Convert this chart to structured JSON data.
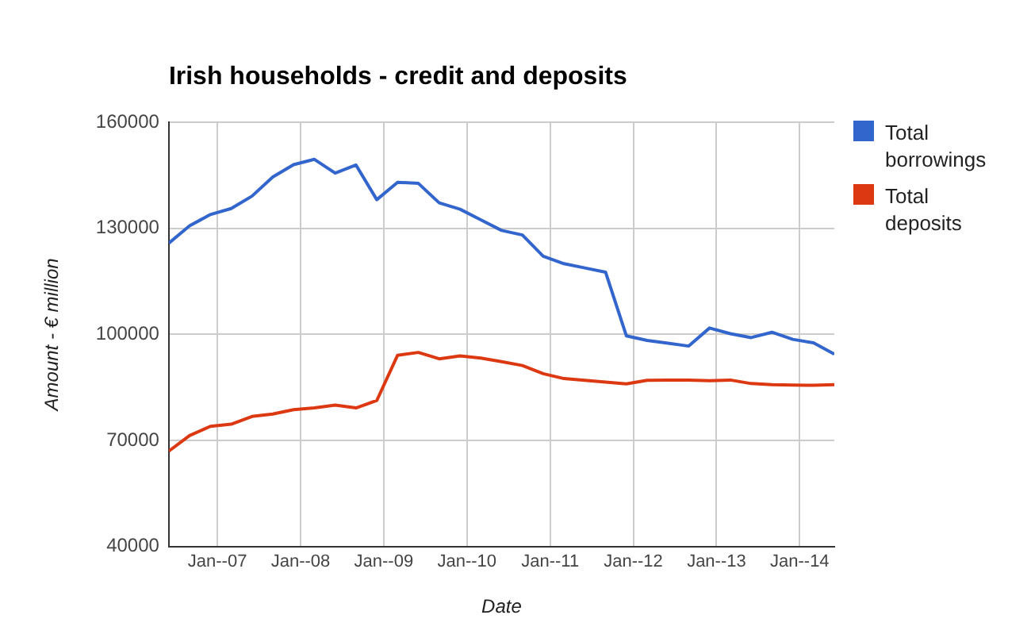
{
  "chart_data": {
    "type": "line",
    "title": "Irish households - credit and deposits",
    "xlabel": "Date",
    "ylabel": "Amount - € million",
    "x": [
      "2006-06",
      "2006-09",
      "2006-12",
      "2007-03",
      "2007-06",
      "2007-09",
      "2007-12",
      "2008-03",
      "2008-06",
      "2008-09",
      "2008-12",
      "2009-03",
      "2009-06",
      "2009-09",
      "2009-12",
      "2010-03",
      "2010-06",
      "2010-09",
      "2010-12",
      "2011-03",
      "2011-06",
      "2011-09",
      "2011-12",
      "2012-03",
      "2012-06",
      "2012-09",
      "2012-12",
      "2013-03",
      "2013-06",
      "2013-09",
      "2013-12",
      "2014-03",
      "2014-06"
    ],
    "series": [
      {
        "name": "Total borrowings",
        "color": "#3366cc",
        "values": [
          125800,
          130700,
          133900,
          135600,
          139100,
          144500,
          148000,
          149500,
          145600,
          147900,
          138100,
          143000,
          142700,
          137200,
          135400,
          132400,
          129400,
          128100,
          122100,
          120000,
          118800,
          117600,
          99600,
          98300,
          97500,
          96700,
          101800,
          100200,
          99100,
          100600,
          98600,
          97600,
          94400
        ]
      },
      {
        "name": "Total deposits",
        "color": "#dc3912",
        "values": [
          67000,
          71400,
          74000,
          74600,
          76800,
          77500,
          78700,
          79200,
          80000,
          79200,
          81300,
          94100,
          94900,
          93100,
          93900,
          93300,
          92300,
          91200,
          88900,
          87500,
          87000,
          86500,
          86000,
          87000,
          87100,
          87100,
          86900,
          87100,
          86100,
          85800,
          85700,
          85600,
          85800
        ]
      }
    ],
    "xlim": [
      "2006-06",
      "2014-06"
    ],
    "xticks": [
      {
        "value": "2007-01",
        "label": "Jan--07"
      },
      {
        "value": "2008-01",
        "label": "Jan--08"
      },
      {
        "value": "2009-01",
        "label": "Jan--09"
      },
      {
        "value": "2010-01",
        "label": "Jan--10"
      },
      {
        "value": "2011-01",
        "label": "Jan--11"
      },
      {
        "value": "2012-01",
        "label": "Jan--12"
      },
      {
        "value": "2013-01",
        "label": "Jan--13"
      },
      {
        "value": "2014-01",
        "label": "Jan--14"
      }
    ],
    "ylim": [
      40000,
      160000
    ],
    "yticks": [
      40000,
      70000,
      100000,
      130000,
      160000
    ],
    "grid": true,
    "legend": "top right",
    "marker": "none",
    "line_style": "solid"
  }
}
